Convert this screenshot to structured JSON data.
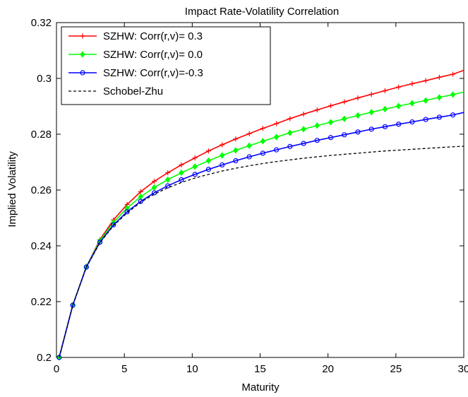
{
  "chart_data": {
    "type": "line",
    "title": "Impact Rate-Volatility Correlation",
    "xlabel": "Maturity",
    "ylabel": "Implied Volatility",
    "xlim": [
      0,
      30
    ],
    "ylim": [
      0.2,
      0.32
    ],
    "xticks": [
      0,
      5,
      10,
      15,
      20,
      25,
      30
    ],
    "yticks": [
      0.2,
      0.22,
      0.24,
      0.26,
      0.28,
      0.3,
      0.32
    ],
    "xtick_labels": [
      "0",
      "5",
      "10",
      "15",
      "20",
      "25",
      "30"
    ],
    "ytick_labels": [
      "0.2",
      "0.22",
      "0.24",
      "0.26",
      "0.28",
      "0.3",
      "0.32"
    ],
    "legend_position": "top-left",
    "grid": false,
    "x": [
      0.2,
      1.2,
      2.2,
      3.2,
      4.2,
      5.2,
      6.2,
      7.2,
      8.2,
      9.2,
      10.2,
      11.2,
      12.2,
      13.2,
      14.2,
      15.2,
      16.2,
      17.2,
      18.2,
      19.2,
      20.2,
      21.2,
      22.2,
      23.2,
      24.2,
      25.2,
      26.2,
      27.2,
      28.2,
      29.2,
      30
    ],
    "series": [
      {
        "name": "SZHW: Corr(r,v)= 0.3",
        "color": "#ff0000",
        "marker": "plus",
        "values": [
          0.2,
          0.2187,
          0.2325,
          0.2422,
          0.2493,
          0.2548,
          0.2594,
          0.2631,
          0.2662,
          0.269,
          0.2715,
          0.274,
          0.2762,
          0.2783,
          0.2802,
          0.2821,
          0.2838,
          0.2856,
          0.2872,
          0.2887,
          0.2902,
          0.2916,
          0.293,
          0.2943,
          0.2956,
          0.2969,
          0.2981,
          0.2992,
          0.3004,
          0.3015,
          0.3029
        ]
      },
      {
        "name": "SZHW: Corr(r,v)= 0.0",
        "color": "#00ff00",
        "marker": "diamond",
        "values": [
          0.2,
          0.2187,
          0.2325,
          0.2418,
          0.2484,
          0.2535,
          0.2576,
          0.2609,
          0.2637,
          0.2662,
          0.2684,
          0.2705,
          0.2724,
          0.2742,
          0.2759,
          0.2775,
          0.279,
          0.2805,
          0.2818,
          0.2831,
          0.2843,
          0.2855,
          0.2867,
          0.2879,
          0.289,
          0.2901,
          0.2911,
          0.2921,
          0.2932,
          0.2942,
          0.2951
        ]
      },
      {
        "name": "SZHW: Corr(r,v)=-0.3",
        "color": "#0000ff",
        "marker": "circle",
        "values": [
          0.2,
          0.2187,
          0.2324,
          0.2413,
          0.2475,
          0.2522,
          0.2559,
          0.259,
          0.2615,
          0.2637,
          0.2656,
          0.2674,
          0.269,
          0.2705,
          0.2719,
          0.2732,
          0.2744,
          0.2756,
          0.2767,
          0.2778,
          0.2788,
          0.2798,
          0.2808,
          0.2818,
          0.2827,
          0.2836,
          0.2844,
          0.2853,
          0.2861,
          0.2869,
          0.2878
        ]
      },
      {
        "name": "Schobel-Zhu",
        "color": "#000000",
        "marker": "none",
        "dash": true,
        "values": [
          0.2,
          0.2187,
          0.2323,
          0.2411,
          0.2472,
          0.2518,
          0.2556,
          0.2585,
          0.2608,
          0.2627,
          0.2643,
          0.2656,
          0.2668,
          0.2678,
          0.2687,
          0.2695,
          0.2702,
          0.2708,
          0.2714,
          0.2719,
          0.2724,
          0.2728,
          0.2732,
          0.2736,
          0.274,
          0.2743,
          0.2746,
          0.2749,
          0.2752,
          0.2755,
          0.2757
        ]
      }
    ]
  }
}
